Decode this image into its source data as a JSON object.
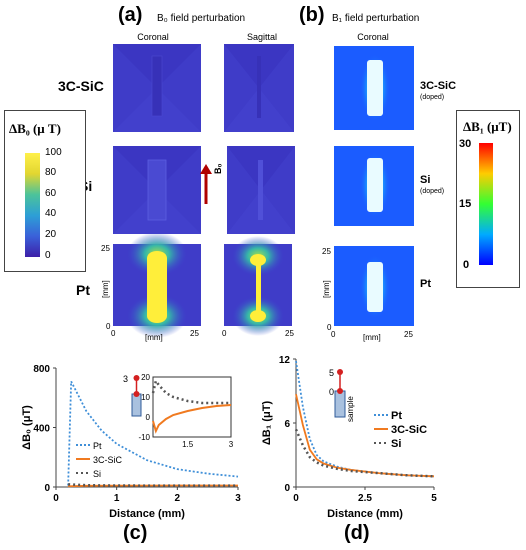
{
  "header": {
    "panel_a": "(a)",
    "panel_b": "(b)",
    "title_a": "B₀ field perturbation",
    "title_b": "B₁ field perturbation",
    "col_coronal": "Coronal",
    "col_sagittal": "Sagittal",
    "col_coronal_b": "Coronal"
  },
  "rows": {
    "sic": "3C-SiC",
    "si": "Si",
    "pt": "Pt"
  },
  "b1_labels": {
    "sic": "3C-SiC",
    "sic_sub": "(doped)",
    "si": "Si",
    "si_sub": "(doped)",
    "pt": "Pt"
  },
  "b0_arrow_label": "B₀",
  "axes_maps": {
    "unit": "[mm]",
    "tick_0": "0",
    "tick_25": "25"
  },
  "colorbar_b0": {
    "title": "ΔB₀ (μ T)",
    "ticks": [
      "100",
      "80",
      "60",
      "40",
      "20",
      "0"
    ],
    "colors": [
      "#fff04a",
      "#e2d630",
      "#4cc39a",
      "#2d9fd6",
      "#3a61d9",
      "#3d1fa8"
    ]
  },
  "colorbar_b1": {
    "title": "ΔB₁ (μT)",
    "ticks": [
      "30",
      "15",
      "0"
    ],
    "colors": [
      "#ff0000",
      "#ffff00",
      "#00ff66",
      "#00aaff",
      "#0000ff"
    ]
  },
  "chart_data": [
    {
      "type": "line",
      "panel": "(c)",
      "xlabel": "Distance  (mm)",
      "ylabel": "ΔB₀ (μT)",
      "xlim": [
        0,
        3
      ],
      "ylim": [
        0,
        800
      ],
      "xticks": [
        "0",
        "1",
        "2",
        "3"
      ],
      "yticks": [
        "0",
        "400",
        "800"
      ],
      "series": [
        {
          "name": "Pt",
          "color": "#3f8fd8",
          "x": [
            0.2,
            0.25,
            0.5,
            0.75,
            1.0,
            1.5,
            2.0,
            2.5,
            3.0
          ],
          "values": [
            10,
            710,
            510,
            380,
            290,
            180,
            120,
            90,
            70
          ]
        },
        {
          "name": "3C-SiC",
          "color": "#f07a20",
          "x": [
            0.2,
            0.5,
            1.0,
            2.0,
            3.0
          ],
          "values": [
            5,
            8,
            9,
            10,
            10
          ]
        },
        {
          "name": "Si",
          "color": "#555555",
          "x": [
            0.2,
            0.5,
            1.0,
            2.0,
            3.0
          ],
          "values": [
            18,
            12,
            10,
            9,
            9
          ]
        }
      ],
      "inset": {
        "xlim": [
          0.3,
          3
        ],
        "ylim": [
          -10,
          20
        ],
        "xticks": [
          "1.5",
          "3"
        ],
        "yticks": [
          "20",
          "10",
          "0",
          "-10"
        ],
        "series": [
          {
            "name": "Si",
            "x": [
              0.3,
              0.4,
              0.5,
              0.75,
              1.0,
              1.5,
              2.0,
              2.5,
              3.0
            ],
            "values": [
              12,
              18,
              16,
              12,
              10,
              8,
              7,
              7,
              7
            ]
          },
          {
            "name": "3C-SiC",
            "x": [
              0.3,
              0.4,
              0.5,
              0.75,
              1.0,
              1.5,
              2.0,
              2.5,
              3.0
            ],
            "values": [
              -2,
              -7,
              -4,
              -1,
              1,
              3,
              4.5,
              5.5,
              6
            ]
          }
        ],
        "marker_label": "3"
      }
    },
    {
      "type": "line",
      "panel": "(d)",
      "xlabel": "Distance (mm)",
      "ylabel": "ΔB₁ (μT)",
      "xlim": [
        0,
        5
      ],
      "ylim": [
        0,
        12
      ],
      "xticks": [
        "0",
        "2.5",
        "5"
      ],
      "yticks": [
        "0",
        "6",
        "12"
      ],
      "series": [
        {
          "name": "Pt",
          "color": "#3f8fd8",
          "x": [
            0,
            0.25,
            0.5,
            0.75,
            1.0,
            1.5,
            2.0,
            3.0,
            4.0,
            5.0
          ],
          "values": [
            11.8,
            7.5,
            4.5,
            3.0,
            2.4,
            1.9,
            1.6,
            1.3,
            1.1,
            1.0
          ]
        },
        {
          "name": "3C-SiC",
          "color": "#f07a20",
          "x": [
            0,
            0.25,
            0.5,
            0.75,
            1.0,
            1.5,
            2.0,
            3.0,
            4.0,
            5.0
          ],
          "values": [
            8.7,
            5.8,
            3.5,
            2.6,
            2.2,
            1.8,
            1.6,
            1.3,
            1.1,
            1.0
          ]
        },
        {
          "name": "Si",
          "color": "#555555",
          "x": [
            0,
            0.25,
            0.5,
            0.75,
            1.0,
            1.5,
            2.0,
            3.0,
            4.0,
            5.0
          ],
          "values": [
            5.4,
            3.9,
            2.8,
            2.3,
            2.0,
            1.7,
            1.5,
            1.3,
            1.1,
            1.0
          ]
        }
      ],
      "inset": {
        "label": "sample",
        "marker_top": "5",
        "marker_bottom": "0"
      }
    }
  ]
}
